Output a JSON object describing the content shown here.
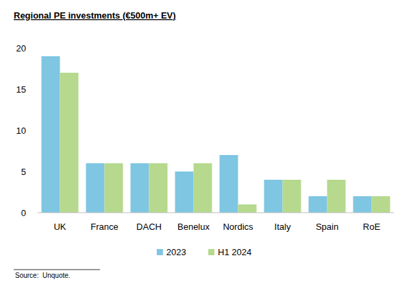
{
  "chart_data": {
    "type": "bar",
    "title": "Regional PE investments (€500m+ EV)",
    "categories": [
      "UK",
      "France",
      "DACH",
      "Benelux",
      "Nordics",
      "Italy",
      "Spain",
      "RoE"
    ],
    "series": [
      {
        "name": "2023",
        "color": "#7ec6e2",
        "values": [
          19,
          6,
          6,
          5,
          7,
          4,
          2,
          2
        ]
      },
      {
        "name": "H1 2024",
        "color": "#b6d98e",
        "values": [
          17,
          6,
          6,
          6,
          1,
          4,
          4,
          2
        ]
      }
    ],
    "ylim": [
      0,
      20
    ],
    "yticks": [
      0,
      5,
      10,
      15,
      20
    ],
    "grid": false,
    "legend": "bottom",
    "source": "Source:  Unquote."
  }
}
